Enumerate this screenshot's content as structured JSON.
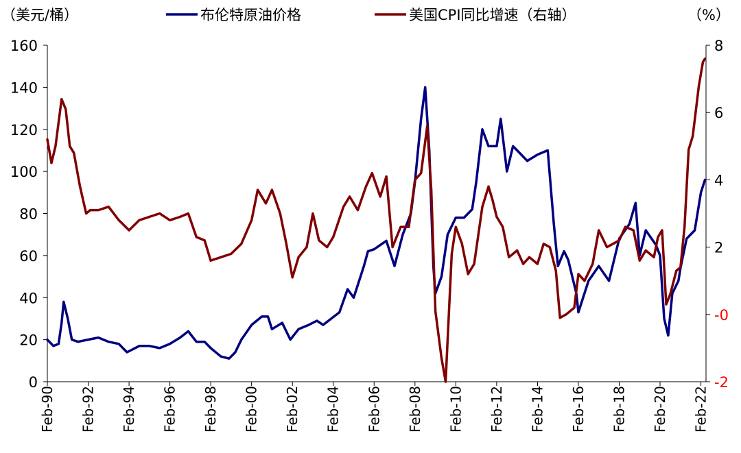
{
  "chart_data": {
    "type": "line",
    "left_axis_unit": "（美元/桶）",
    "right_axis_unit": "（%）",
    "left_ylim": [
      0,
      160
    ],
    "left_yticks": [
      "0",
      "20",
      "40",
      "60",
      "80",
      "100",
      "120",
      "140",
      "160"
    ],
    "right_ylim": [
      -2,
      8
    ],
    "right_yticks": [
      "-2",
      "-0",
      "2",
      "4",
      "6",
      "8"
    ],
    "x_range": [
      1990.0,
      2022.25
    ],
    "xticks": [
      "Feb-90",
      "Feb-92",
      "Feb-94",
      "Feb-96",
      "Feb-98",
      "Feb-00",
      "Feb-02",
      "Feb-04",
      "Feb-06",
      "Feb-08",
      "Feb-10",
      "Feb-12",
      "Feb-14",
      "Feb-16",
      "Feb-18",
      "Feb-20",
      "Feb-22"
    ],
    "legend_position": "top",
    "series": [
      {
        "name": "布伦特原油价格",
        "axis": "left",
        "color": "#000080",
        "x": [
          1990.0,
          1990.3,
          1990.55,
          1990.7,
          1990.8,
          1991.0,
          1991.2,
          1991.5,
          1992.0,
          1992.5,
          1993.0,
          1993.5,
          1993.9,
          1994.5,
          1995.0,
          1995.5,
          1996.0,
          1996.5,
          1996.9,
          1997.3,
          1997.7,
          1998.0,
          1998.5,
          1998.9,
          1999.2,
          1999.5,
          2000.0,
          2000.5,
          2000.8,
          2001.0,
          2001.5,
          2001.9,
          2002.3,
          2002.8,
          2003.2,
          2003.5,
          2003.9,
          2004.3,
          2004.7,
          2005.0,
          2005.5,
          2005.7,
          2006.0,
          2006.6,
          2007.0,
          2007.4,
          2007.8,
          2008.0,
          2008.3,
          2008.5,
          2008.7,
          2008.9,
          2009.0,
          2009.3,
          2009.6,
          2010.0,
          2010.4,
          2010.8,
          2011.0,
          2011.3,
          2011.6,
          2012.0,
          2012.2,
          2012.5,
          2012.8,
          2013.0,
          2013.5,
          2014.0,
          2014.5,
          2014.8,
          2015.0,
          2015.3,
          2015.5,
          2015.9,
          2016.0,
          2016.5,
          2017.0,
          2017.5,
          2018.0,
          2018.5,
          2018.8,
          2019.0,
          2019.3,
          2019.8,
          2020.0,
          2020.2,
          2020.4,
          2020.6,
          2020.9,
          2021.0,
          2021.3,
          2021.7,
          2022.0,
          2022.2
        ],
        "values": [
          20,
          17,
          18,
          28,
          38,
          30,
          20,
          19,
          20,
          21,
          19,
          18,
          14,
          17,
          17,
          16,
          18,
          21,
          24,
          19,
          19,
          16,
          12,
          11,
          14,
          20,
          27,
          31,
          31,
          25,
          28,
          20,
          25,
          27,
          29,
          27,
          30,
          33,
          44,
          40,
          55,
          62,
          63,
          67,
          55,
          70,
          80,
          95,
          125,
          140,
          110,
          55,
          42,
          50,
          70,
          78,
          78,
          82,
          95,
          120,
          112,
          112,
          125,
          100,
          112,
          110,
          105,
          108,
          110,
          75,
          55,
          62,
          58,
          42,
          33,
          48,
          55,
          48,
          68,
          75,
          85,
          60,
          72,
          65,
          60,
          30,
          22,
          42,
          48,
          54,
          68,
          72,
          90,
          96
        ]
      },
      {
        "name": "美国CPI同比增速（右轴）",
        "axis": "right",
        "color": "#800000",
        "x": [
          1990.0,
          1990.2,
          1990.4,
          1990.7,
          1990.9,
          1991.1,
          1991.3,
          1991.6,
          1991.9,
          1992.1,
          1992.5,
          1993.0,
          1993.5,
          1994.0,
          1994.5,
          1995.0,
          1995.5,
          1996.0,
          1996.5,
          1996.9,
          1997.3,
          1997.7,
          1998.0,
          1998.5,
          1999.0,
          1999.5,
          2000.0,
          2000.3,
          2000.7,
          2001.0,
          2001.4,
          2001.7,
          2002.0,
          2002.3,
          2002.7,
          2003.0,
          2003.3,
          2003.7,
          2004.0,
          2004.5,
          2004.8,
          2005.2,
          2005.6,
          2005.9,
          2006.3,
          2006.6,
          2006.9,
          2007.3,
          2007.7,
          2008.0,
          2008.3,
          2008.6,
          2008.8,
          2009.0,
          2009.3,
          2009.5,
          2009.8,
          2010.0,
          2010.3,
          2010.6,
          2010.9,
          2011.3,
          2011.6,
          2011.8,
          2012.0,
          2012.3,
          2012.6,
          2013.0,
          2013.3,
          2013.6,
          2014.0,
          2014.3,
          2014.6,
          2014.9,
          2015.1,
          2015.4,
          2015.8,
          2016.0,
          2016.3,
          2016.7,
          2017.0,
          2017.4,
          2017.7,
          2018.0,
          2018.3,
          2018.7,
          2019.0,
          2019.3,
          2019.7,
          2019.9,
          2020.1,
          2020.3,
          2020.5,
          2020.8,
          2021.0,
          2021.2,
          2021.4,
          2021.6,
          2021.9,
          2022.1,
          2022.2
        ],
        "values": [
          5.2,
          4.5,
          5.0,
          6.4,
          6.1,
          5.0,
          4.8,
          3.8,
          3.0,
          3.1,
          3.1,
          3.2,
          2.8,
          2.5,
          2.8,
          2.9,
          3.0,
          2.8,
          2.9,
          3.0,
          2.3,
          2.2,
          1.6,
          1.7,
          1.8,
          2.1,
          2.8,
          3.7,
          3.3,
          3.7,
          3.0,
          2.1,
          1.1,
          1.7,
          2.0,
          3.0,
          2.2,
          2.0,
          2.3,
          3.2,
          3.5,
          3.1,
          3.8,
          4.2,
          3.5,
          4.1,
          2.0,
          2.6,
          2.6,
          4.0,
          4.2,
          5.6,
          3.7,
          0.1,
          -1.3,
          -2.0,
          1.8,
          2.6,
          2.1,
          1.2,
          1.5,
          3.2,
          3.8,
          3.4,
          2.9,
          2.6,
          1.7,
          1.9,
          1.5,
          1.7,
          1.5,
          2.1,
          2.0,
          1.3,
          -0.1,
          0.0,
          0.2,
          1.2,
          1.0,
          1.5,
          2.5,
          2.0,
          2.1,
          2.2,
          2.6,
          2.5,
          1.6,
          1.9,
          1.7,
          2.3,
          2.5,
          0.3,
          0.6,
          1.3,
          1.4,
          2.6,
          4.9,
          5.3,
          6.8,
          7.5,
          7.6
        ]
      }
    ]
  }
}
